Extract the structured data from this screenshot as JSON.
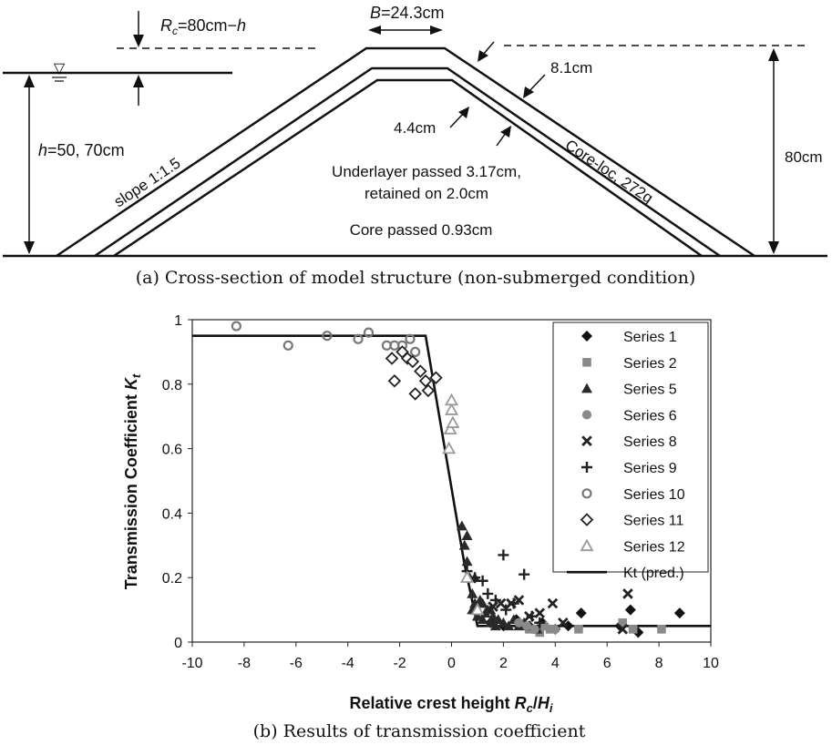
{
  "panel_a": {
    "caption": "(a) Cross-section of model structure (non-submerged condition)",
    "crest_width": "=24.3cm",
    "crest_width_symbol": "B",
    "rc_label_symbol": "R",
    "rc_label_sub": "c",
    "rc_label_rest": "=80cm−",
    "rc_label_h": "h",
    "water_depth_symbol": "h",
    "water_depth": "=50, 70cm",
    "slope": "slope 1:1.5",
    "armor_thickness": "8.1cm",
    "underlayer_thickness": "4.4cm",
    "underlayer_desc_1": "Underlayer passed 3.17cm,",
    "underlayer_desc_2": "retained on 2.0cm",
    "core_desc": "Core passed  0.93cm",
    "armor_unit": "Core-loc, 272g",
    "structure_height": "80cm",
    "water_symbol": "▽"
  },
  "panel_b": {
    "caption": "(b) Results of transmission coefficient"
  },
  "chart_data": {
    "type": "scatter",
    "xlabel_text": "Relative crest height ",
    "xlabel_math": "R",
    "xlabel_sub": "c",
    "xlabel_slash": "/",
    "xlabel_math2": "H",
    "xlabel_sub2": "i",
    "ylabel_text": "Transmission Coefficient ",
    "ylabel_math": "K",
    "ylabel_sub": "t",
    "xlim": [
      -10,
      10
    ],
    "ylim": [
      0,
      1
    ],
    "xticks": [
      -10,
      -8,
      -6,
      -4,
      -2,
      0,
      2,
      4,
      6,
      8,
      10
    ],
    "yticks": [
      0,
      0.2,
      0.4,
      0.6,
      0.8,
      1
    ],
    "grid": false,
    "legend_position": "top-right",
    "series": [
      {
        "name": "Series 1",
        "marker": "diamond-filled",
        "color": "#111111",
        "points": [
          [
            1.5,
            0.06
          ],
          [
            2.0,
            0.05
          ],
          [
            2.5,
            0.07
          ],
          [
            3.0,
            0.05
          ],
          [
            3.5,
            0.06
          ],
          [
            4.0,
            0.04
          ],
          [
            4.5,
            0.05
          ],
          [
            5.0,
            0.09
          ],
          [
            6.5,
            0.05
          ],
          [
            6.9,
            0.1
          ],
          [
            7.2,
            0.03
          ],
          [
            8.8,
            0.09
          ]
        ]
      },
      {
        "name": "Series 2",
        "marker": "square-filled",
        "color": "#8a8a8a",
        "points": [
          [
            3.0,
            0.04
          ],
          [
            3.4,
            0.03
          ],
          [
            3.8,
            0.04
          ],
          [
            4.9,
            0.04
          ],
          [
            6.6,
            0.06
          ],
          [
            7.0,
            0.04
          ],
          [
            8.1,
            0.04
          ]
        ]
      },
      {
        "name": "Series 5",
        "marker": "triangle-filled",
        "color": "#2a2a2a",
        "points": [
          [
            0.4,
            0.36
          ],
          [
            0.5,
            0.3
          ],
          [
            0.6,
            0.25
          ],
          [
            0.7,
            0.2
          ],
          [
            0.8,
            0.15
          ],
          [
            0.8,
            0.1
          ],
          [
            0.9,
            0.12
          ],
          [
            1.0,
            0.08
          ],
          [
            1.0,
            0.1
          ],
          [
            1.1,
            0.13
          ],
          [
            1.2,
            0.07
          ],
          [
            1.3,
            0.09
          ],
          [
            1.4,
            0.1
          ],
          [
            1.5,
            0.06
          ],
          [
            1.6,
            0.08
          ],
          [
            1.7,
            0.05
          ],
          [
            1.8,
            0.07
          ],
          [
            2.0,
            0.06
          ],
          [
            2.2,
            0.05
          ],
          [
            2.4,
            0.07
          ],
          [
            2.6,
            0.05
          ],
          [
            2.8,
            0.06
          ],
          [
            3.0,
            0.05
          ],
          [
            3.3,
            0.04
          ],
          [
            0.6,
            0.33
          ],
          [
            0.9,
            0.2
          ],
          [
            1.2,
            0.12
          ],
          [
            1.5,
            0.1
          ]
        ]
      },
      {
        "name": "Series 6",
        "marker": "circle-filled",
        "color": "#8a8a8a",
        "points": [
          [
            2.6,
            0.06
          ],
          [
            2.9,
            0.05
          ],
          [
            3.2,
            0.04
          ],
          [
            3.6,
            0.05
          ],
          [
            4.0,
            0.04
          ]
        ]
      },
      {
        "name": "Series 8",
        "marker": "x",
        "color": "#222222",
        "points": [
          [
            1.6,
            0.11
          ],
          [
            1.9,
            0.12
          ],
          [
            2.3,
            0.12
          ],
          [
            2.6,
            0.13
          ],
          [
            3.0,
            0.08
          ],
          [
            3.4,
            0.09
          ],
          [
            3.9,
            0.12
          ],
          [
            4.3,
            0.06
          ],
          [
            6.8,
            0.15
          ],
          [
            6.6,
            0.04
          ]
        ]
      },
      {
        "name": "Series 9",
        "marker": "plus",
        "color": "#222222",
        "points": [
          [
            0.6,
            0.22
          ],
          [
            0.9,
            0.2
          ],
          [
            1.2,
            0.19
          ],
          [
            1.4,
            0.15
          ],
          [
            1.7,
            0.13
          ],
          [
            2.0,
            0.27
          ],
          [
            2.1,
            0.1
          ],
          [
            2.4,
            0.12
          ],
          [
            2.8,
            0.21
          ],
          [
            3.1,
            0.08
          ],
          [
            3.4,
            0.06
          ]
        ]
      },
      {
        "name": "Series 10",
        "marker": "circle-open",
        "color": "#777777",
        "points": [
          [
            -8.3,
            0.98
          ],
          [
            -6.3,
            0.92
          ],
          [
            -4.8,
            0.95
          ],
          [
            -3.6,
            0.94
          ],
          [
            -3.2,
            0.96
          ],
          [
            -2.5,
            0.92
          ],
          [
            -2.2,
            0.92
          ],
          [
            -1.9,
            0.92
          ],
          [
            -1.6,
            0.94
          ],
          [
            -1.4,
            0.9
          ]
        ]
      },
      {
        "name": "Series 11",
        "marker": "diamond-open",
        "color": "#222222",
        "points": [
          [
            -2.3,
            0.88
          ],
          [
            -2.2,
            0.81
          ],
          [
            -1.9,
            0.9
          ],
          [
            -1.7,
            0.88
          ],
          [
            -1.5,
            0.87
          ],
          [
            -1.4,
            0.77
          ],
          [
            -1.2,
            0.84
          ],
          [
            -1.0,
            0.81
          ],
          [
            -0.9,
            0.78
          ],
          [
            -0.6,
            0.82
          ]
        ]
      },
      {
        "name": "Series 12",
        "marker": "triangle-open",
        "color": "#9a9a9a",
        "points": [
          [
            -0.1,
            0.6
          ],
          [
            -0.05,
            0.66
          ],
          [
            0.0,
            0.72
          ],
          [
            0.0,
            0.75
          ],
          [
            0.05,
            0.68
          ],
          [
            0.6,
            0.2
          ],
          [
            1.0,
            0.1
          ]
        ]
      },
      {
        "name": "Kt (pred.)",
        "marker": "line",
        "color": "#111111",
        "points": [
          [
            -10,
            0.95
          ],
          [
            -1.0,
            0.95
          ],
          [
            0.48,
            0.25
          ],
          [
            1.0,
            0.05
          ],
          [
            10,
            0.05
          ]
        ]
      }
    ]
  }
}
